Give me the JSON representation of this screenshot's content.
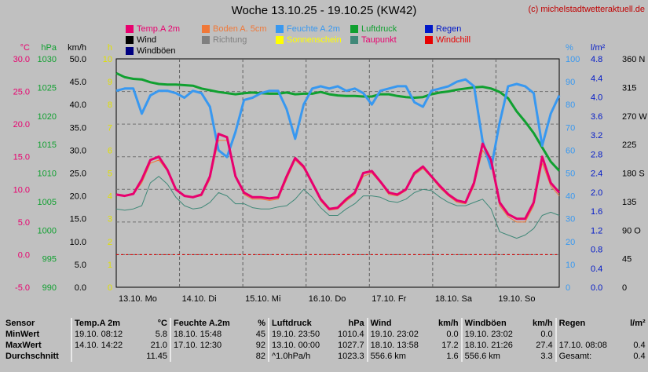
{
  "header": {
    "title": "Woche 13.10.25 - 19.10.25 (KW42)",
    "copyright": "(c) michelstadtwetteraktuell.de"
  },
  "legend": [
    {
      "label": "Temp.A 2m",
      "color": "#e8006e"
    },
    {
      "label": "Boden A. 5cm",
      "color": "#f07838"
    },
    {
      "label": "Feuchte A.2m",
      "color": "#3898f0"
    },
    {
      "label": "Luftdruck",
      "color": "#10a030"
    },
    {
      "label": "Regen",
      "color": "#0018c8"
    },
    {
      "label": "Wind",
      "color": "#000000"
    },
    {
      "label": "Richtung",
      "color": "#808080"
    },
    {
      "label": "Sonnenschein",
      "color": "#ffff00"
    },
    {
      "label": "Taupunkt",
      "color": "#408878"
    },
    {
      "label": "Windchill",
      "color": "#e80000"
    },
    {
      "label": "Windböen",
      "color": "#000080"
    }
  ],
  "chart_data": {
    "type": "line",
    "x_ticks": [
      "13.10. Mo",
      "14.10. Di",
      "15.10. Mi",
      "16.10. Do",
      "17.10. Fr",
      "18.10. Sa",
      "19.10. So"
    ],
    "axes": {
      "celsius": {
        "unit": "°C",
        "color": "#e8006e",
        "ticks": [
          "30.0",
          "25.0",
          "20.0",
          "15.0",
          "10.0",
          "5.0",
          "0.0",
          "-5.0"
        ]
      },
      "hpa": {
        "unit": "hPa",
        "color": "#10a030",
        "ticks": [
          "1030",
          "1025",
          "1020",
          "1015",
          "1010",
          "1005",
          "1000",
          "995",
          "990"
        ]
      },
      "kmh": {
        "unit": "km/h",
        "color": "#000000",
        "ticks": [
          "50.0",
          "45.0",
          "40.0",
          "35.0",
          "30.0",
          "25.0",
          "20.0",
          "15.0",
          "10.0",
          "5.0",
          "0.0"
        ]
      },
      "hours": {
        "unit": "h",
        "color": "#e0e000",
        "ticks": [
          "10",
          "9",
          "8",
          "7",
          "6",
          "5",
          "4",
          "3",
          "2",
          "1",
          "0"
        ]
      },
      "percent": {
        "unit": "%",
        "color": "#3898f0",
        "ticks": [
          "100",
          "90",
          "80",
          "70",
          "60",
          "50",
          "40",
          "30",
          "20",
          "10",
          "0"
        ]
      },
      "rain": {
        "unit": "l/m²",
        "color": "#0018c8",
        "ticks": [
          "4.8",
          "4.4",
          "4.0",
          "3.6",
          "3.2",
          "2.8",
          "2.4",
          "2.0",
          "1.6",
          "1.2",
          "0.8",
          "0.4",
          "0.0"
        ]
      },
      "direction": {
        "unit": "",
        "color": "#000000",
        "ticks": [
          "360 N",
          "315",
          "270 W",
          "225",
          "180 S",
          "135",
          "90 O",
          "45",
          "0"
        ]
      }
    },
    "series": [
      {
        "name": "Temp.A 2m",
        "axis": "celsius",
        "values": [
          9.2,
          9.0,
          9.3,
          11.5,
          14.5,
          15.0,
          13.0,
          10.0,
          9.0,
          8.8,
          9.2,
          12.0,
          18.5,
          18.0,
          12.0,
          9.5,
          8.8,
          8.8,
          8.6,
          8.8,
          12.0,
          14.8,
          13.5,
          11.0,
          8.5,
          7.0,
          7.2,
          8.5,
          9.5,
          12.5,
          12.8,
          11.2,
          9.5,
          9.2,
          10.0,
          12.5,
          13.5,
          12.0,
          10.5,
          9.2,
          8.3,
          8.0,
          11.0,
          17.0,
          14.5,
          8.0,
          6.2,
          5.5,
          5.5,
          8.0,
          15.0,
          11.0,
          9.5
        ]
      },
      {
        "name": "Luftdruck",
        "axis": "hpa",
        "values": [
          1027.5,
          1026.8,
          1026.5,
          1026.4,
          1025.9,
          1025.6,
          1025.5,
          1025.5,
          1025.4,
          1025.3,
          1024.8,
          1024.5,
          1024.2,
          1024.0,
          1023.8,
          1024.0,
          1024.1,
          1024.0,
          1023.9,
          1023.9,
          1024.1,
          1023.8,
          1023.9,
          1023.9,
          1024.2,
          1023.8,
          1023.6,
          1023.5,
          1023.5,
          1023.4,
          1023.4,
          1023.8,
          1023.8,
          1023.5,
          1023.3,
          1023.2,
          1023.3,
          1023.8,
          1024.1,
          1024.3,
          1024.6,
          1024.8,
          1025.0,
          1025.1,
          1024.8,
          1024.2,
          1023.1,
          1020.8,
          1019.0,
          1017.0,
          1014.5,
          1012.0,
          1010.4
        ]
      },
      {
        "name": "Feuchte A.2m",
        "axis": "percent",
        "values": [
          86,
          87,
          87,
          76,
          84,
          86,
          86,
          85,
          83,
          86,
          85,
          79,
          60,
          57,
          68,
          82,
          83,
          85,
          86,
          86,
          78,
          65,
          80,
          87,
          88,
          87,
          88,
          86,
          87,
          85,
          80,
          86,
          87,
          88,
          88,
          81,
          79,
          86,
          87,
          88,
          90,
          91,
          88,
          64,
          52,
          72,
          88,
          89,
          88,
          85,
          62,
          76,
          84
        ]
      },
      {
        "name": "Boden A. 5cm",
        "axis": "celsius",
        "values": [
          9.2,
          9.0,
          9.2,
          11.0,
          14.0,
          14.5,
          12.8,
          10.0,
          9.0,
          8.8,
          9.0,
          11.5,
          17.5,
          17.5,
          11.8,
          9.2,
          8.5,
          8.5,
          8.3,
          8.5,
          11.5,
          14.5,
          13.2,
          10.8,
          8.2,
          6.8,
          7.0,
          8.2,
          9.2,
          12.0,
          12.5,
          11.0,
          9.2,
          9.0,
          9.8,
          12.2,
          13.2,
          11.8,
          10.2,
          9.0,
          8.0,
          7.8,
          10.5,
          16.0,
          14.0,
          7.5,
          5.8,
          5.0,
          5.0,
          7.5,
          14.0,
          10.5,
          9.0
        ]
      },
      {
        "name": "Taupunkt",
        "axis": "celsius",
        "values": [
          7.0,
          6.8,
          7.0,
          7.5,
          11.0,
          12.0,
          10.8,
          8.8,
          7.5,
          7.0,
          7.2,
          8.0,
          9.5,
          9.0,
          7.8,
          7.8,
          7.2,
          7.0,
          7.0,
          7.3,
          7.5,
          8.5,
          10.0,
          8.8,
          7.2,
          6.0,
          6.0,
          7.0,
          7.8,
          9.0,
          9.0,
          8.8,
          8.2,
          8.0,
          8.5,
          9.5,
          10.0,
          9.8,
          8.8,
          8.0,
          7.5,
          7.5,
          8.0,
          8.5,
          7.0,
          3.5,
          3.0,
          2.5,
          3.0,
          4.0,
          6.0,
          6.5,
          6.0
        ]
      }
    ],
    "gridline": {
      "celsius_value": 0.0,
      "color": "#e00000"
    }
  },
  "stats": {
    "header": [
      "Sensor",
      "Temp.A 2m",
      "°C",
      "Feuchte A.2m",
      "%",
      "Luftdruck",
      "hPa",
      "Wind",
      "km/h",
      "Windböen",
      "km/h",
      "Regen",
      "l/m²"
    ],
    "rows": [
      {
        "label": "MinWert",
        "cells": [
          "19.10. 08:12",
          "5.8",
          "18.10. 15:48",
          "45",
          "19.10. 23:50",
          "1010.4",
          "19.10. 23:02",
          "0.0",
          "19.10. 23:02",
          "0.0",
          "",
          ""
        ]
      },
      {
        "label": "MaxWert",
        "cells": [
          "14.10. 14:22",
          "21.0",
          "17.10. 12:30",
          "92",
          "13.10. 00:00",
          "1027.7",
          "18.10. 13:58",
          "17.2",
          "18.10. 21:26",
          "27.4",
          "17.10. 08:08",
          "0.4"
        ]
      },
      {
        "label": "Durchschnitt",
        "cells": [
          "",
          "11.45",
          "",
          "82",
          "^1.0hPa/h",
          "1023.3",
          "556.6 km",
          "1.6",
          "556.6 km",
          "3.3",
          "Gesamt:",
          "0.4"
        ]
      }
    ]
  }
}
